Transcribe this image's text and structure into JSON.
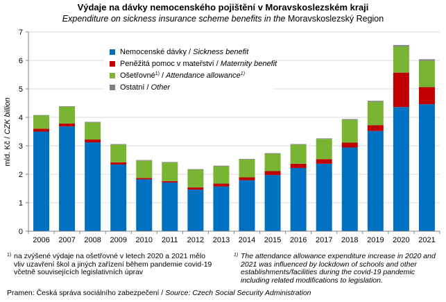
{
  "header": {
    "title": "Výdaje na dávky nemocenského pojištění v Moravskoslezském  kraji",
    "subtitle_italic": "Expenditure  on sickness insurance scheme benefits in the ",
    "subtitle_region": "Moravskoslezský Region"
  },
  "legend": {
    "items": [
      {
        "label_cz": "Nemocenské dávky / ",
        "label_en": "Sickness benefit",
        "sup": "",
        "color": "#0070C0"
      },
      {
        "label_cz": "Peněžitá pomoc v mateřství / ",
        "label_en": "Maternity benefit",
        "sup": "",
        "color": "#C00000"
      },
      {
        "label_cz": "Ošetřovné",
        "label_en": "Attendance allowance",
        "sup": "1)",
        "color": "#7AB433"
      },
      {
        "label_cz": "Ostatní / ",
        "label_en": "Other",
        "sup": "",
        "color": "#808080"
      }
    ]
  },
  "chart_data": {
    "type": "bar",
    "stacked": true,
    "categories": [
      "2006",
      "2007",
      "2008",
      "2009",
      "2010",
      "2011",
      "2012",
      "2013",
      "2014",
      "2015",
      "2016",
      "2017",
      "2018",
      "2019",
      "2020",
      "2021"
    ],
    "series": [
      {
        "name": "Nemocenské dávky / Sickness benefit",
        "color": "#0070C0",
        "values": [
          3.5,
          3.68,
          3.12,
          2.34,
          1.82,
          1.71,
          1.46,
          1.57,
          1.79,
          1.97,
          2.22,
          2.37,
          2.94,
          3.52,
          4.36,
          4.46
        ]
      },
      {
        "name": "Peněžitá pomoc v mateřství / Maternity benefit",
        "color": "#C00000",
        "values": [
          0.1,
          0.1,
          0.1,
          0.08,
          0.05,
          0.05,
          0.08,
          0.1,
          0.1,
          0.14,
          0.15,
          0.16,
          0.17,
          0.2,
          1.21,
          0.6
        ]
      },
      {
        "name": "Ošetřovné / Attendance allowance",
        "color": "#7AB433",
        "values": [
          0.46,
          0.59,
          0.6,
          0.62,
          0.61,
          0.65,
          0.62,
          0.61,
          0.63,
          0.61,
          0.67,
          0.71,
          0.8,
          0.82,
          0.92,
          0.93
        ]
      },
      {
        "name": "Ostatní / Other",
        "color": "#808080",
        "values": [
          0.02,
          0.02,
          0.02,
          0.02,
          0.02,
          0.02,
          0.02,
          0.02,
          0.02,
          0.02,
          0.02,
          0.02,
          0.03,
          0.04,
          0.05,
          0.05
        ]
      }
    ],
    "ylabel_cz": "mld. Kč / ",
    "ylabel_en": "CZK billion",
    "ylim": [
      0,
      7
    ],
    "yticks": [
      "0",
      "1",
      "2",
      "3",
      "4",
      "5",
      "6",
      "7"
    ],
    "gridlines": true
  },
  "footnotes": {
    "left_mark": "1)",
    "left": "na zvýšené výdaje na ošetřovné v letech 2020 a 2021 mělo vliv uzavření škol a jiných zařízení během pandemie covid-19 včetně souvisejících legislativních úprav",
    "right_mark": "1)",
    "right": "The attendance allowance expenditure increase in 2020 and 2021 was influenced by lockdown of schools and other establishments/facilities during the covid-19 pandemic including related modifications to legislation."
  },
  "source": {
    "cz": "Pramen:  Česká správa sociálního zabezpečení / ",
    "en": "Source: Czech Social Security Administration"
  }
}
